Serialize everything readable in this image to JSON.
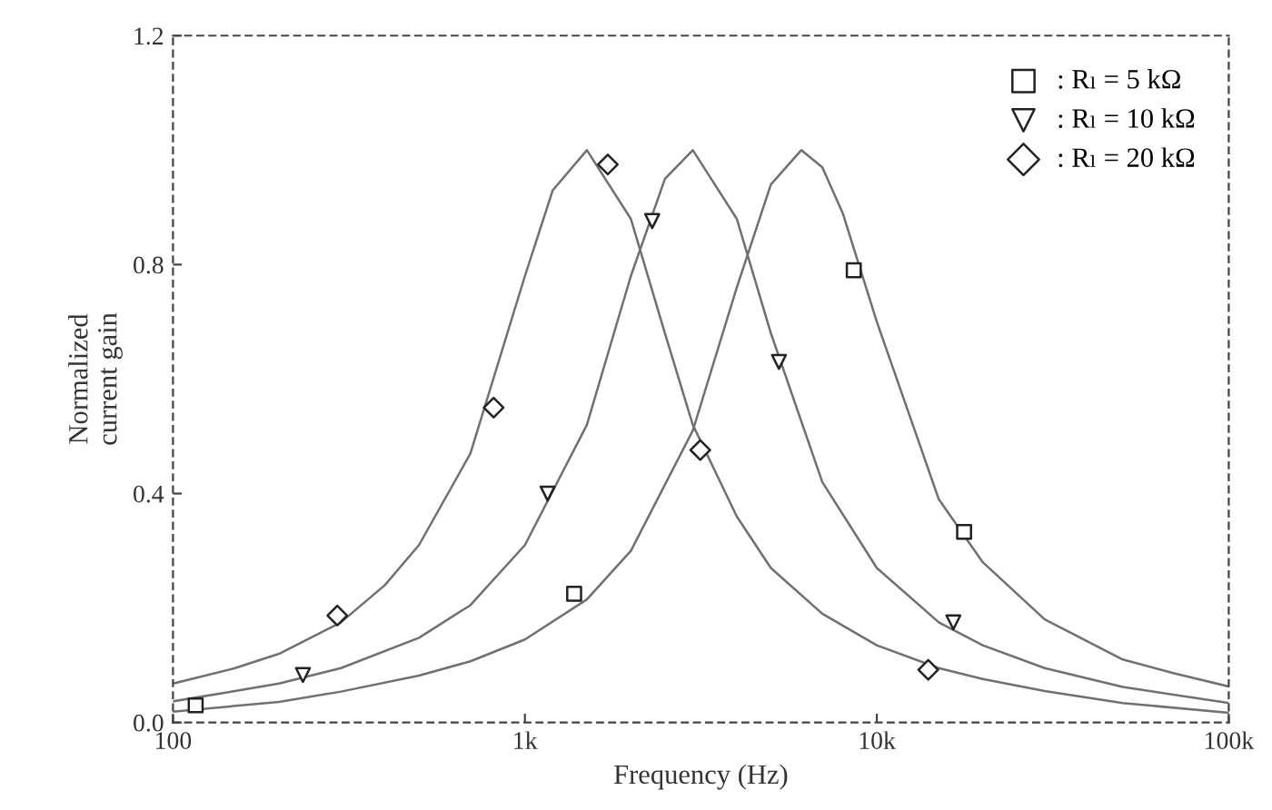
{
  "chart_data": {
    "type": "line",
    "xlabel": "Frequency (Hz)",
    "ylabel": "Normalized\ncurrent gain",
    "log": "x",
    "xlim": [
      100,
      100000
    ],
    "xticks": [
      100,
      {
        "value": 1000,
        "label": "1k"
      },
      {
        "value": 10000,
        "label": "10k"
      },
      {
        "value": 100000,
        "label": "100k"
      }
    ],
    "ylim": [
      0,
      1.2
    ],
    "yticks": [
      {
        "value": 0,
        "label": "0.0"
      },
      0.4,
      0.8,
      1.2
    ],
    "grid": false,
    "legend": "top right",
    "series": [
      {
        "color": "#707070",
        "marker": "none",
        "x": [
          100,
          200,
          300,
          500,
          700,
          1000,
          1500,
          2000,
          3000,
          4000,
          5000,
          6100,
          7000,
          8000,
          10000,
          15000,
          20000,
          30000,
          50000,
          70000,
          100000
        ],
        "values": [
          0.019,
          0.036,
          0.054,
          0.082,
          0.107,
          0.145,
          0.215,
          0.3,
          0.51,
          0.76,
          0.94,
          1.0,
          0.97,
          0.89,
          0.7,
          0.39,
          0.28,
          0.18,
          0.11,
          0.086,
          0.063
        ]
      },
      {
        "color": "#707070",
        "marker": "none",
        "x": [
          100,
          150,
          200,
          300,
          500,
          700,
          1000,
          1500,
          2000,
          2500,
          3000,
          4000,
          5000,
          7000,
          10000,
          15000,
          20000,
          30000,
          50000,
          100000
        ],
        "values": [
          0.037,
          0.055,
          0.068,
          0.095,
          0.148,
          0.205,
          0.31,
          0.52,
          0.78,
          0.95,
          1.0,
          0.88,
          0.68,
          0.42,
          0.27,
          0.175,
          0.135,
          0.095,
          0.062,
          0.034
        ]
      },
      {
        "color": "#707070",
        "marker": "none",
        "x": [
          100,
          150,
          200,
          300,
          400,
          500,
          700,
          1000,
          1200,
          1500,
          2000,
          2500,
          3000,
          4000,
          5000,
          7000,
          10000,
          15000,
          20000,
          30000,
          50000,
          100000
        ],
        "values": [
          0.068,
          0.095,
          0.12,
          0.175,
          0.24,
          0.31,
          0.47,
          0.78,
          0.93,
          1.0,
          0.88,
          0.68,
          0.52,
          0.36,
          0.27,
          0.19,
          0.135,
          0.095,
          0.076,
          0.055,
          0.034,
          0.017
        ]
      },
      {
        "type": "scatter",
        "name": ": Rₗ = 5 kΩ",
        "color": "#222222",
        "marker": "square",
        "x": [
          116,
          1380,
          8600,
          17700
        ],
        "values": [
          0.03,
          0.225,
          0.79,
          0.333
        ]
      },
      {
        "type": "scatter",
        "name": ": Rₗ = 10 kΩ",
        "color": "#222222",
        "marker": "triangle",
        "x": [
          234,
          1160,
          2300,
          5270,
          16500
        ],
        "values": [
          0.083,
          0.4,
          0.876,
          0.63,
          0.175
        ]
      },
      {
        "type": "scatter",
        "name": ": Rₗ = 20 kΩ",
        "color": "#222222",
        "marker": "diamond",
        "x": [
          293,
          815,
          1720,
          3150,
          14000
        ],
        "values": [
          0.187,
          0.55,
          0.975,
          0.476,
          0.092
        ]
      }
    ]
  }
}
